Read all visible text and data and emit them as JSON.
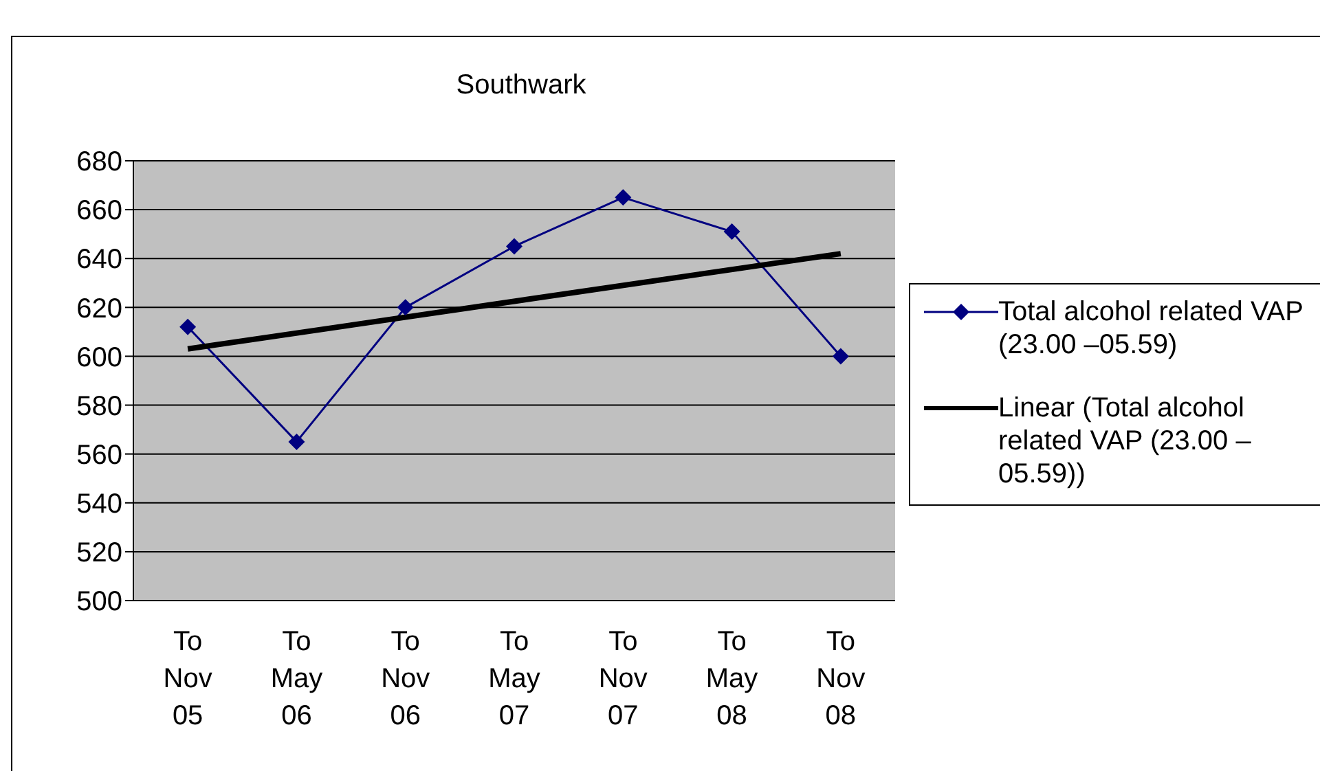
{
  "chart_data": {
    "type": "line",
    "title": "Southwark",
    "categories": [
      "To Nov 05",
      "To May 06",
      "To Nov 06",
      "To May 07",
      "To Nov 07",
      "To May 08",
      "To Nov 08"
    ],
    "series": [
      {
        "name": "Total alcohol related VAP (23.00 –05.59)",
        "color": "#000080",
        "values": [
          612,
          565,
          620,
          645,
          665,
          651,
          600
        ],
        "marker": "diamond",
        "line_style": "solid"
      },
      {
        "name": "Linear (Total alcohol related VAP (23.00 –05.59))",
        "type": "line",
        "color": "#000000",
        "x": [
          "To Nov 05",
          "To Nov 08"
        ],
        "values": [
          603,
          642
        ],
        "marker": "none",
        "line_style": "solid"
      }
    ],
    "ylim": [
      500,
      680
    ],
    "yticks": [
      500,
      520,
      540,
      560,
      580,
      600,
      620,
      640,
      660,
      680
    ],
    "grid": "y",
    "legend": "right"
  }
}
